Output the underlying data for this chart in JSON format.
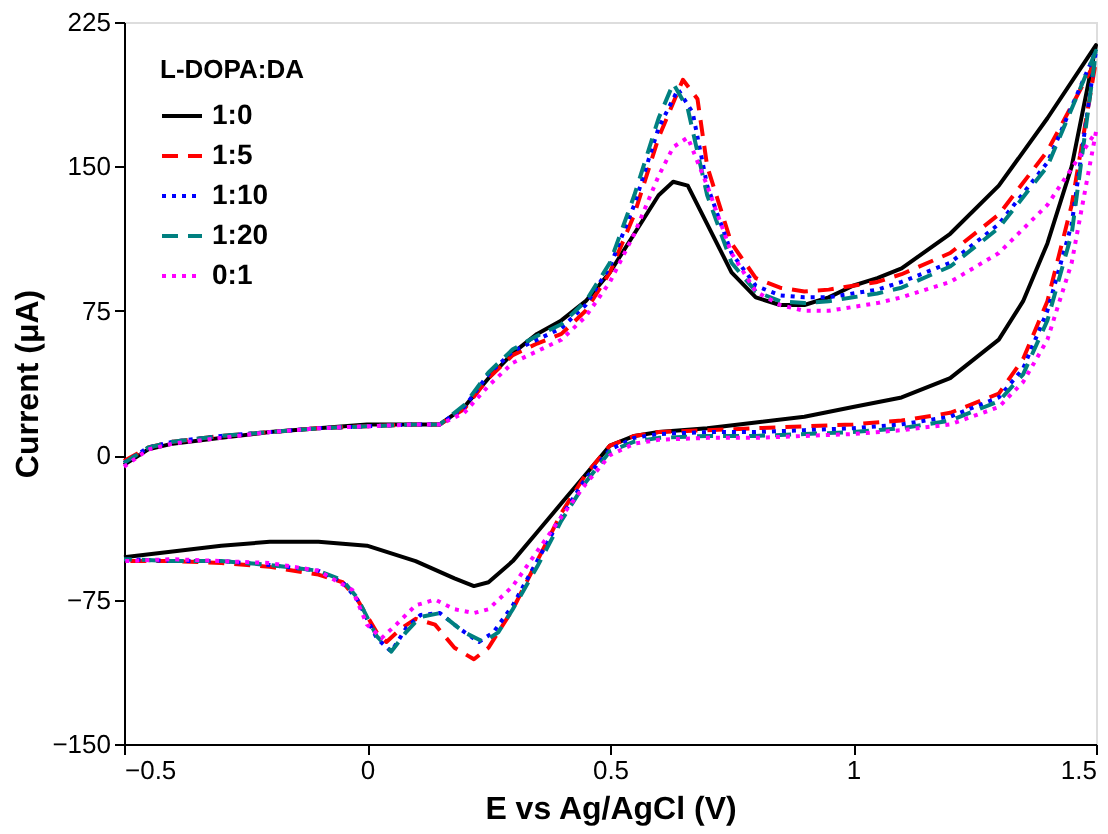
{
  "chart_data": {
    "type": "line",
    "xlabel": "E vs Ag/AgCl (V)",
    "ylabel": "Current (μA)",
    "legend_title": "L-DOPA:DA",
    "legend": "top left",
    "grid": false,
    "marker": "none",
    "xlim": [
      -0.5,
      1.5
    ],
    "xticks": [
      -0.5,
      0,
      0.5,
      1,
      1.5
    ],
    "ylim": [
      -150,
      225
    ],
    "yticks": [
      -150,
      -75,
      0,
      75,
      150,
      225
    ],
    "series": [
      {
        "name": "1:0",
        "color": "#000000",
        "line_style": "solid",
        "x": [
          -0.5,
          -0.45,
          -0.4,
          -0.3,
          -0.2,
          -0.1,
          0,
          0.1,
          0.15,
          0.2,
          0.25,
          0.3,
          0.35,
          0.4,
          0.45,
          0.5,
          0.55,
          0.6,
          0.63,
          0.66,
          0.7,
          0.75,
          0.8,
          0.85,
          0.9,
          0.95,
          1.0,
          1.05,
          1.1,
          1.2,
          1.3,
          1.4,
          1.5,
          1.45,
          1.4,
          1.35,
          1.3,
          1.2,
          1.1,
          1.0,
          0.9,
          0.8,
          0.7,
          0.6,
          0.55,
          0.5,
          0.45,
          0.4,
          0.35,
          0.3,
          0.25,
          0.22,
          0.18,
          0.1,
          0,
          -0.1,
          -0.2,
          -0.3,
          -0.4,
          -0.5
        ],
        "values": [
          -5,
          3,
          6,
          9,
          12,
          14,
          16,
          16,
          16,
          25,
          40,
          53,
          63,
          70,
          80,
          95,
          115,
          135,
          142,
          140,
          120,
          95,
          82,
          78,
          78,
          82,
          88,
          92,
          97,
          115,
          140,
          175,
          213,
          150,
          110,
          80,
          60,
          40,
          30,
          25,
          20,
          17,
          14,
          12,
          10,
          5,
          -10,
          -25,
          -40,
          -55,
          -66,
          -68,
          -64,
          -55,
          -47,
          -45,
          -45,
          -47,
          -50,
          -53
        ]
      },
      {
        "name": "1:5",
        "color": "#ff0000",
        "line_style": "dashed",
        "x": [
          -0.5,
          -0.45,
          -0.4,
          -0.3,
          -0.2,
          -0.1,
          0,
          0.1,
          0.15,
          0.2,
          0.25,
          0.3,
          0.35,
          0.4,
          0.45,
          0.5,
          0.55,
          0.6,
          0.65,
          0.68,
          0.7,
          0.75,
          0.8,
          0.85,
          0.9,
          0.95,
          1.0,
          1.05,
          1.1,
          1.2,
          1.3,
          1.4,
          1.5,
          1.45,
          1.4,
          1.35,
          1.3,
          1.2,
          1.1,
          1.0,
          0.9,
          0.8,
          0.7,
          0.6,
          0.55,
          0.5,
          0.45,
          0.4,
          0.35,
          0.3,
          0.25,
          0.22,
          0.18,
          0.14,
          0.1,
          0.07,
          0.04,
          0.02,
          -0.02,
          -0.05,
          -0.1,
          -0.2,
          -0.3,
          -0.4,
          -0.5
        ],
        "values": [
          -3,
          4,
          7,
          10,
          12,
          14,
          15,
          16,
          16,
          24,
          40,
          52,
          58,
          63,
          75,
          95,
          125,
          165,
          195,
          185,
          150,
          110,
          92,
          87,
          85,
          86,
          88,
          90,
          94,
          105,
          125,
          158,
          205,
          130,
          80,
          50,
          32,
          22,
          18,
          16,
          15,
          14,
          13,
          12,
          10,
          5,
          -10,
          -30,
          -55,
          -80,
          -100,
          -106,
          -100,
          -88,
          -85,
          -90,
          -97,
          -92,
          -75,
          -66,
          -62,
          -58,
          -56,
          -55,
          -55
        ]
      },
      {
        "name": "1:10",
        "color": "#0000ff",
        "line_style": "dotted",
        "x": [
          -0.5,
          -0.45,
          -0.4,
          -0.3,
          -0.2,
          -0.1,
          0,
          0.1,
          0.15,
          0.2,
          0.25,
          0.3,
          0.35,
          0.4,
          0.45,
          0.5,
          0.55,
          0.6,
          0.64,
          0.67,
          0.7,
          0.75,
          0.8,
          0.85,
          0.9,
          0.95,
          1.0,
          1.05,
          1.1,
          1.2,
          1.3,
          1.4,
          1.5,
          1.45,
          1.4,
          1.35,
          1.3,
          1.2,
          1.1,
          1.0,
          0.9,
          0.8,
          0.7,
          0.6,
          0.55,
          0.5,
          0.45,
          0.4,
          0.35,
          0.3,
          0.26,
          0.23,
          0.19,
          0.15,
          0.11,
          0.08,
          0.05,
          0.02,
          -0.02,
          -0.05,
          -0.1,
          -0.2,
          -0.3,
          -0.4,
          -0.5
        ],
        "values": [
          -4,
          4,
          7,
          10,
          12,
          14,
          15,
          16,
          16,
          25,
          42,
          54,
          60,
          66,
          78,
          98,
          130,
          170,
          190,
          178,
          140,
          105,
          88,
          83,
          82,
          82,
          84,
          86,
          90,
          100,
          120,
          152,
          210,
          120,
          75,
          45,
          30,
          20,
          16,
          14,
          13,
          12,
          12,
          11,
          9,
          3,
          -12,
          -32,
          -55,
          -78,
          -92,
          -97,
          -90,
          -82,
          -83,
          -90,
          -102,
          -95,
          -75,
          -66,
          -60,
          -57,
          -55,
          -55,
          -54
        ]
      },
      {
        "name": "1:20",
        "color": "#008080",
        "line_style": "dashed",
        "x": [
          -0.5,
          -0.45,
          -0.4,
          -0.3,
          -0.2,
          -0.1,
          0,
          0.1,
          0.15,
          0.2,
          0.25,
          0.3,
          0.35,
          0.4,
          0.45,
          0.5,
          0.55,
          0.6,
          0.63,
          0.66,
          0.7,
          0.75,
          0.8,
          0.85,
          0.9,
          0.95,
          1.0,
          1.05,
          1.1,
          1.2,
          1.3,
          1.4,
          1.5,
          1.45,
          1.4,
          1.35,
          1.3,
          1.2,
          1.1,
          1.0,
          0.9,
          0.8,
          0.7,
          0.6,
          0.55,
          0.5,
          0.45,
          0.4,
          0.35,
          0.3,
          0.27,
          0.24,
          0.2,
          0.15,
          0.11,
          0.08,
          0.05,
          0.02,
          -0.02,
          -0.05,
          -0.1,
          -0.2,
          -0.3,
          -0.4,
          -0.5
        ],
        "values": [
          -4,
          4,
          7,
          10,
          12,
          14,
          15,
          16,
          16,
          26,
          43,
          55,
          62,
          68,
          80,
          100,
          135,
          175,
          193,
          180,
          135,
          100,
          85,
          80,
          79,
          80,
          82,
          84,
          87,
          98,
          118,
          150,
          210,
          115,
          70,
          42,
          28,
          18,
          14,
          12,
          11,
          10,
          10,
          9,
          7,
          2,
          -14,
          -34,
          -58,
          -80,
          -92,
          -97,
          -92,
          -82,
          -84,
          -92,
          -102,
          -94,
          -74,
          -65,
          -60,
          -57,
          -55,
          -55,
          -54
        ]
      },
      {
        "name": "0:1",
        "color": "#ff00ff",
        "line_style": "dotted",
        "x": [
          -0.5,
          -0.45,
          -0.4,
          -0.3,
          -0.2,
          -0.1,
          0,
          0.1,
          0.15,
          0.2,
          0.25,
          0.3,
          0.35,
          0.4,
          0.45,
          0.5,
          0.55,
          0.6,
          0.63,
          0.66,
          0.7,
          0.75,
          0.8,
          0.85,
          0.9,
          0.95,
          1.0,
          1.05,
          1.1,
          1.2,
          1.3,
          1.4,
          1.5,
          1.45,
          1.4,
          1.35,
          1.3,
          1.2,
          1.1,
          1.0,
          0.9,
          0.8,
          0.7,
          0.6,
          0.55,
          0.5,
          0.45,
          0.4,
          0.35,
          0.3,
          0.25,
          0.22,
          0.18,
          0.14,
          0.1,
          0.06,
          0.03,
          0.0,
          -0.03,
          -0.1,
          -0.2,
          -0.3,
          -0.4,
          -0.5
        ],
        "values": [
          -6,
          3,
          6,
          9,
          12,
          14,
          15,
          16,
          16,
          22,
          36,
          48,
          54,
          60,
          72,
          90,
          115,
          145,
          160,
          165,
          140,
          105,
          85,
          78,
          75,
          75,
          77,
          79,
          82,
          90,
          105,
          130,
          168,
          100,
          60,
          38,
          25,
          16,
          13,
          11,
          10,
          9,
          9,
          8,
          6,
          0,
          -15,
          -32,
          -50,
          -68,
          -80,
          -82,
          -80,
          -75,
          -78,
          -88,
          -95,
          -88,
          -70,
          -60,
          -56,
          -55,
          -54,
          -55
        ]
      }
    ]
  }
}
